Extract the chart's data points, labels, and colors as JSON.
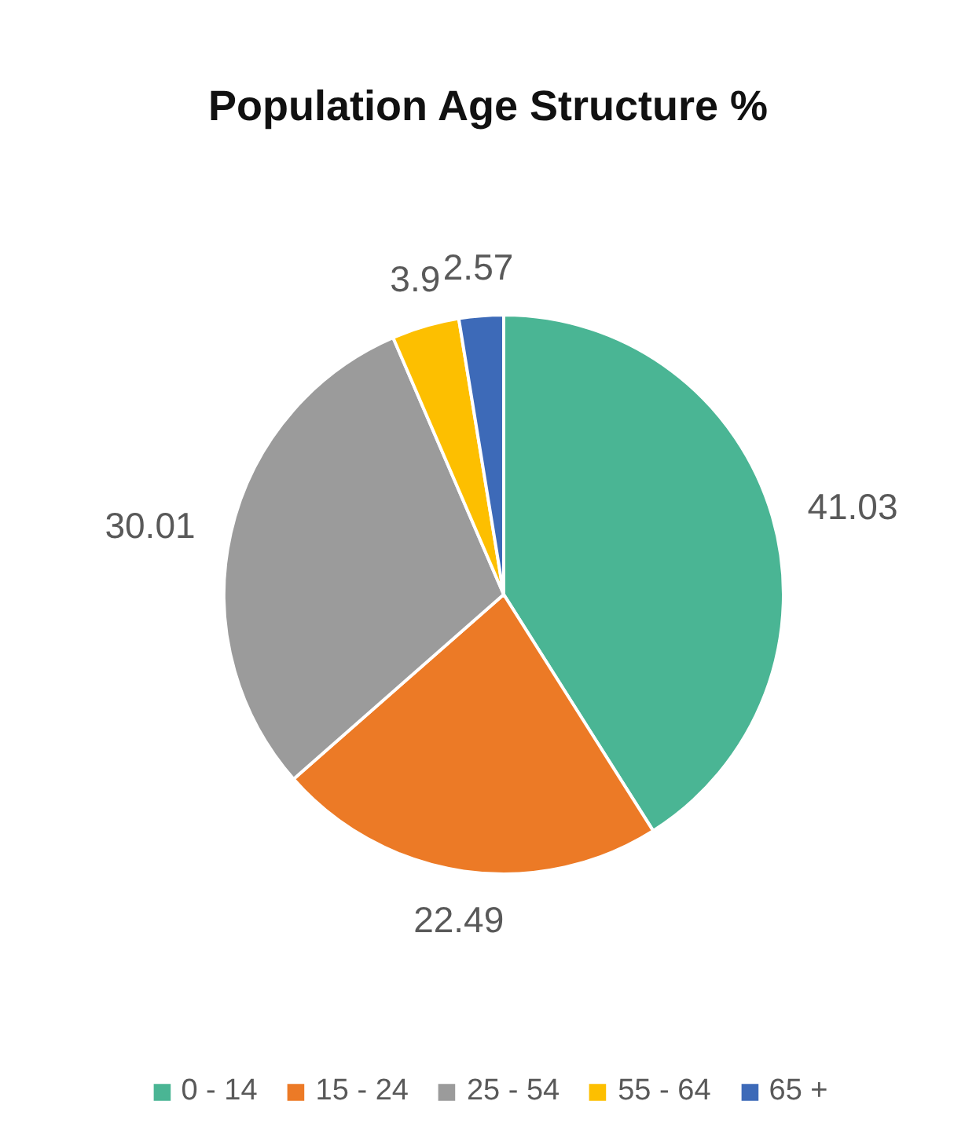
{
  "chart_data": {
    "type": "pie",
    "title": "Population Age Structure %",
    "categories": [
      "0 - 14",
      "15 - 24",
      "25 - 54",
      "55 - 64",
      "65 +"
    ],
    "values": [
      41.03,
      22.49,
      30.01,
      3.9,
      2.57
    ],
    "colors": [
      "#4ab594",
      "#ec7a26",
      "#9b9b9b",
      "#fdbf00",
      "#3d6ab8"
    ],
    "data_labels": true,
    "legend": "bottom"
  }
}
